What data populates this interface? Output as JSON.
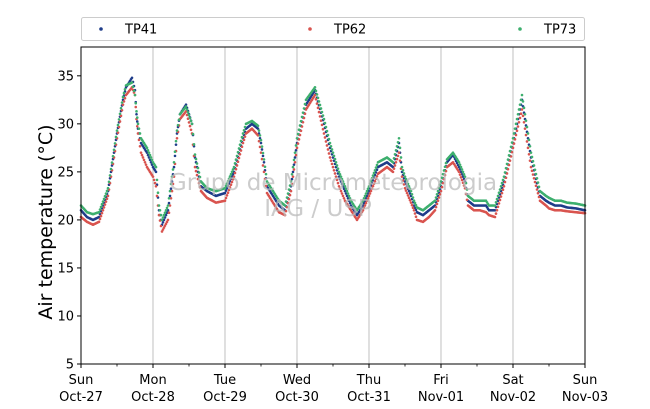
{
  "chart_data": {
    "type": "scatter",
    "title": "",
    "xlabel": "",
    "ylabel": "Air temperature (°C)",
    "ylim": [
      5,
      38
    ],
    "yticks": [
      5,
      10,
      15,
      20,
      25,
      30,
      35
    ],
    "xlim": [
      "2019-10-27T00:00",
      "2019-11-03T00:00"
    ],
    "x_ticks": [
      {
        "day": "Sun",
        "date": "Oct-27"
      },
      {
        "day": "Mon",
        "date": "Oct-28"
      },
      {
        "day": "Tue",
        "date": "Oct-29"
      },
      {
        "day": "Wed",
        "date": "Oct-30"
      },
      {
        "day": "Thu",
        "date": "Oct-31"
      },
      {
        "day": "Fri",
        "date": "Nov-01"
      },
      {
        "day": "Sat",
        "date": "Nov-02"
      },
      {
        "day": "Sun",
        "date": "Nov-03"
      }
    ],
    "grid": "vertical at day boundaries",
    "legend_position": "top, horizontal, above plot",
    "watermark": [
      "Grupo de Micrometeorologia",
      "IAG / USP"
    ],
    "series": [
      {
        "name": "TP41",
        "color": "#1f3d8a",
        "hours": [
          0,
          2,
          4,
          6,
          9,
          12,
          14,
          15,
          17,
          18,
          18.5,
          19,
          20,
          22,
          24,
          25,
          26,
          27,
          29,
          31,
          32,
          33,
          35,
          37,
          38,
          40,
          42,
          45,
          48,
          51,
          54,
          55,
          57,
          59,
          60,
          61,
          62,
          64,
          66,
          68,
          70,
          72,
          75,
          78,
          81,
          83,
          85,
          86,
          88,
          90,
          92,
          94,
          96,
          99,
          102,
          104,
          106,
          107,
          108,
          110,
          111,
          112,
          114,
          116,
          118,
          120,
          122,
          124,
          126,
          128,
          129,
          131,
          133,
          135,
          136,
          138,
          141,
          144,
          147,
          150,
          153,
          155,
          156,
          158,
          160,
          162,
          165,
          168
        ],
        "values": [
          21.0,
          20.3,
          20.0,
          20.3,
          23.0,
          29.0,
          32.5,
          33.8,
          34.8,
          33.5,
          31.0,
          29.5,
          28.0,
          27.0,
          25.5,
          25.0,
          21.0,
          19.5,
          21.0,
          25.5,
          29.0,
          31.0,
          32.0,
          30.0,
          26.5,
          23.5,
          23.0,
          22.5,
          22.8,
          25.0,
          28.5,
          29.5,
          30.0,
          29.5,
          28.0,
          26.0,
          23.5,
          22.5,
          21.5,
          21.0,
          23.5,
          28.0,
          32.0,
          33.5,
          30.0,
          27.5,
          25.5,
          24.5,
          23.0,
          21.5,
          20.5,
          21.5,
          23.0,
          25.5,
          26.0,
          25.5,
          28.0,
          25.0,
          24.0,
          22.5,
          21.5,
          20.8,
          20.5,
          21.0,
          21.5,
          23.5,
          26.0,
          26.8,
          25.5,
          24.0,
          22.0,
          21.5,
          21.5,
          21.5,
          21.0,
          21.0,
          24.0,
          28.0,
          32.5,
          26.5,
          22.5,
          22.0,
          21.8,
          21.5,
          21.5,
          21.3,
          21.2,
          21.0
        ]
      },
      {
        "name": "TP62",
        "color": "#d9544f",
        "hours": [
          0,
          2,
          4,
          6,
          9,
          12,
          14,
          15,
          17,
          18,
          18.5,
          19,
          20,
          22,
          24,
          25,
          26,
          27,
          29,
          31,
          32,
          33,
          35,
          37,
          38,
          40,
          42,
          45,
          48,
          51,
          54,
          55,
          57,
          59,
          60,
          61,
          62,
          64,
          66,
          68,
          70,
          72,
          75,
          78,
          81,
          83,
          85,
          86,
          88,
          90,
          92,
          94,
          96,
          99,
          102,
          104,
          106,
          107,
          108,
          110,
          111,
          112,
          114,
          116,
          118,
          120,
          122,
          124,
          126,
          128,
          129,
          131,
          133,
          135,
          136,
          138,
          141,
          144,
          147,
          150,
          153,
          155,
          156,
          158,
          160,
          162,
          165,
          168
        ],
        "values": [
          20.3,
          19.8,
          19.5,
          19.8,
          22.5,
          28.5,
          32.0,
          33.0,
          33.8,
          33.0,
          30.5,
          29.0,
          27.0,
          25.5,
          24.5,
          23.5,
          20.5,
          18.8,
          20.0,
          24.5,
          28.5,
          30.5,
          31.3,
          29.0,
          25.5,
          23.0,
          22.3,
          21.8,
          22.0,
          24.5,
          28.0,
          29.0,
          29.5,
          28.8,
          27.0,
          25.0,
          22.8,
          21.8,
          20.8,
          20.5,
          23.0,
          27.5,
          31.5,
          33.0,
          29.0,
          26.5,
          24.5,
          23.5,
          22.0,
          21.0,
          20.0,
          21.0,
          22.5,
          24.8,
          25.5,
          25.0,
          27.0,
          24.5,
          23.3,
          21.8,
          21.0,
          20.0,
          19.8,
          20.3,
          21.0,
          23.0,
          25.5,
          26.0,
          25.0,
          23.3,
          21.5,
          21.0,
          21.0,
          20.8,
          20.5,
          20.3,
          23.5,
          27.5,
          31.5,
          25.5,
          22.0,
          21.5,
          21.2,
          21.0,
          21.0,
          20.9,
          20.8,
          20.7
        ]
      },
      {
        "name": "TP73",
        "color": "#3daf6e",
        "hours": [
          0,
          2,
          4,
          6,
          9,
          12,
          14,
          15,
          17,
          18,
          18.5,
          19,
          20,
          22,
          24,
          25,
          26,
          27,
          29,
          31,
          32,
          33,
          35,
          37,
          38,
          40,
          42,
          45,
          48,
          51,
          54,
          55,
          57,
          59,
          60,
          61,
          62,
          64,
          66,
          68,
          70,
          72,
          75,
          78,
          81,
          83,
          85,
          86,
          88,
          90,
          92,
          94,
          96,
          99,
          102,
          104,
          106,
          107,
          108,
          110,
          111,
          112,
          114,
          116,
          118,
          120,
          122,
          124,
          126,
          128,
          129,
          131,
          133,
          135,
          136,
          138,
          141,
          144,
          147,
          150,
          153,
          155,
          156,
          158,
          160,
          162,
          165,
          168
        ],
        "values": [
          21.5,
          20.8,
          20.6,
          20.8,
          23.3,
          29.3,
          32.8,
          34.0,
          34.3,
          33.0,
          31.3,
          30.0,
          28.5,
          27.5,
          26.0,
          25.5,
          21.5,
          20.0,
          21.5,
          26.0,
          29.3,
          31.0,
          31.8,
          30.0,
          26.8,
          24.0,
          23.3,
          23.0,
          23.3,
          25.5,
          29.0,
          30.0,
          30.3,
          29.8,
          28.3,
          26.3,
          24.0,
          23.0,
          22.0,
          21.5,
          24.0,
          28.5,
          32.5,
          33.8,
          30.5,
          28.0,
          26.0,
          25.0,
          23.5,
          22.0,
          21.0,
          22.0,
          23.5,
          26.0,
          26.5,
          26.0,
          28.5,
          25.5,
          24.5,
          23.0,
          22.0,
          21.3,
          21.0,
          21.5,
          22.0,
          24.0,
          26.3,
          27.0,
          26.0,
          24.5,
          22.5,
          22.0,
          22.0,
          22.0,
          21.5,
          21.5,
          24.5,
          28.5,
          33.0,
          27.0,
          23.0,
          22.5,
          22.3,
          22.0,
          22.0,
          21.8,
          21.7,
          21.5
        ]
      }
    ]
  }
}
